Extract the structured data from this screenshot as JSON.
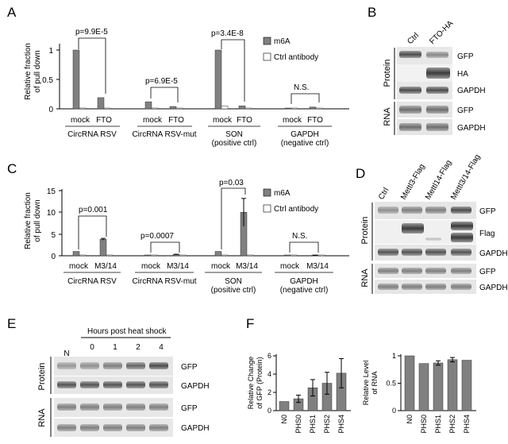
{
  "panels": {
    "A": {
      "label": "A",
      "ylabel": [
        "Relative fraction",
        "of pull down"
      ],
      "ticks": [
        "0",
        "0.5",
        "1"
      ],
      "legend": {
        "m6a": "m6A",
        "ctrl": "Ctrl antibody",
        "m6a_color": "#808080",
        "ctrl_color": "#ffffff"
      },
      "pvalues": [
        "p=9.9E-5",
        "p=6.9E-5",
        "p=3.4E-8",
        "N.S."
      ],
      "xlabels": [
        [
          "mock",
          "FTO"
        ],
        [
          "mock",
          "FTO"
        ],
        [
          "mock",
          "FTO"
        ],
        [
          "mock",
          "FTO"
        ]
      ],
      "groups": [
        [
          "CircRNA RSV"
        ],
        [
          "CircRNA RSV-mut"
        ],
        [
          "SON",
          "(positive ctrl)"
        ],
        [
          "GAPDH",
          "(negative ctrl)"
        ]
      ]
    },
    "B": {
      "label": "B",
      "lanes": [
        "Ctrl",
        "FTO-HA"
      ],
      "protein_label": "Protein",
      "rna_label": "RNA",
      "protein_rows": [
        "GFP",
        "HA",
        "GAPDH"
      ],
      "rna_rows": [
        "GFP",
        "GAPDH"
      ]
    },
    "C": {
      "label": "C",
      "ylabel": [
        "Relative fraction",
        "of pull down"
      ],
      "ticks": [
        "0",
        "5",
        "10",
        "15"
      ],
      "legend": {
        "m6a": "m6A",
        "ctrl": "Ctrl antibody"
      },
      "pvalues": [
        "p=0.001",
        "p=0.0007",
        "p=0.03",
        "N.S."
      ],
      "xlabels": [
        [
          "mock",
          "M3/14"
        ],
        [
          "mock",
          "M3/14"
        ],
        [
          "mock",
          "M3/14"
        ],
        [
          "mock",
          "M3/14"
        ]
      ],
      "groups": [
        [
          "CircRNA RSV"
        ],
        [
          "CircRNA RSV-mut"
        ],
        [
          "SON",
          "(positive ctrl)"
        ],
        [
          "GAPDH",
          "(negative ctrl)"
        ]
      ]
    },
    "D": {
      "label": "D",
      "lanes": [
        "Ctrl",
        "Mettl3-Flag",
        "Mettl14-Flag",
        "Mettl3/14-Flag"
      ],
      "protein_label": "Protein",
      "rna_label": "RNA",
      "protein_rows": [
        "GFP",
        "Flag",
        "GAPDH"
      ],
      "rna_rows": [
        "GFP",
        "GAPDH"
      ]
    },
    "E": {
      "label": "E",
      "header": "Hours post heat shock",
      "lanes": [
        "N",
        "0",
        "1",
        "2",
        "4"
      ],
      "protein_label": "Protein",
      "rna_label": "RNA",
      "protein_rows": [
        "GFP",
        "GAPDH"
      ],
      "rna_rows": [
        "GFP",
        "GAPDH"
      ]
    },
    "F": {
      "label": "F"
    }
  },
  "chart_data": [
    {
      "type": "bar",
      "panel": "A",
      "categories": [
        "CircRNA RSV mock",
        "CircRNA RSV FTO",
        "CircRNA RSV-mut mock",
        "CircRNA RSV-mut FTO",
        "SON mock",
        "SON FTO",
        "GAPDH mock",
        "GAPDH FTO"
      ],
      "series": [
        {
          "name": "m6A",
          "values": [
            1.0,
            0.19,
            0.12,
            0.04,
            1.0,
            0.05,
            0.01,
            0.03
          ]
        },
        {
          "name": "Ctrl antibody",
          "values": [
            0.01,
            0.01,
            0.01,
            0.01,
            0.05,
            0.01,
            0.01,
            0.01
          ]
        }
      ],
      "ylim": [
        0,
        1.1
      ]
    },
    {
      "type": "bar",
      "panel": "C",
      "categories": [
        "CircRNA RSV mock",
        "CircRNA RSV M3/14",
        "CircRNA RSV-mut mock",
        "CircRNA RSV-mut M3/14",
        "SON mock",
        "SON M3/14",
        "GAPDH mock",
        "GAPDH M3/14"
      ],
      "series": [
        {
          "name": "m6A",
          "values": [
            1.0,
            3.8,
            0.05,
            0.3,
            1.0,
            10.0,
            0.05,
            0.1
          ]
        },
        {
          "name": "Ctrl antibody",
          "values": [
            0.05,
            0.05,
            0.05,
            0.05,
            0.05,
            0.1,
            0.05,
            0.05
          ]
        }
      ],
      "errors": [
        [
          0,
          0.2,
          0,
          0.05,
          0,
          3.2,
          0,
          0.02
        ],
        [
          0,
          0,
          0,
          0,
          0,
          0,
          0,
          0
        ]
      ],
      "ylim": [
        0,
        15
      ]
    },
    {
      "type": "bar",
      "panel": "F-left",
      "ylabel": [
        "Relative Change",
        "of GFP (Protein)"
      ],
      "categories": [
        "N0",
        "PHS0",
        "PHS1",
        "PHS2",
        "PHS4"
      ],
      "values": [
        1.0,
        1.3,
        2.5,
        3.0,
        4.1
      ],
      "errors": [
        0,
        0.4,
        0.9,
        1.2,
        1.6
      ],
      "ticks": [
        "0",
        "2",
        "4",
        "6"
      ],
      "ylim": [
        0,
        6
      ]
    },
    {
      "type": "bar",
      "panel": "F-right",
      "ylabel": [
        "Relative Level",
        "of RNA"
      ],
      "categories": [
        "N0",
        "PHS0",
        "PHS1",
        "PHS2",
        "PHS4"
      ],
      "values": [
        1.0,
        0.86,
        0.87,
        0.93,
        0.92
      ],
      "errors": [
        0,
        0,
        0.04,
        0.04,
        0
      ],
      "ticks": [
        "0",
        "0.5",
        "1"
      ],
      "ylim": [
        0,
        1
      ]
    }
  ]
}
